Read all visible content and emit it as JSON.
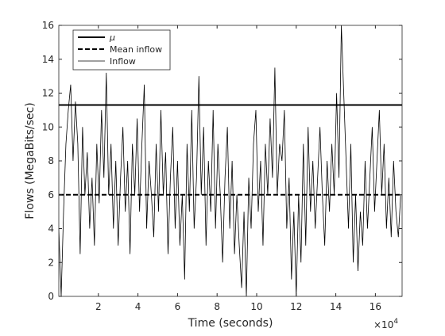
{
  "chart_data": {
    "type": "line",
    "xlabel": "Time (seconds)",
    "ylabel": "Flows (MegaBits/sec)",
    "x_multiplier": {
      "base": "×10",
      "exponent": "4"
    },
    "xlim": [
      0,
      173500
    ],
    "ylim": [
      0,
      16
    ],
    "xticks": [
      {
        "value": 20000,
        "label": "2"
      },
      {
        "value": 40000,
        "label": "4"
      },
      {
        "value": 60000,
        "label": "6"
      },
      {
        "value": 80000,
        "label": "8"
      },
      {
        "value": 100000,
        "label": "10"
      },
      {
        "value": 120000,
        "label": "12"
      },
      {
        "value": 140000,
        "label": "14"
      },
      {
        "value": 160000,
        "label": "16"
      }
    ],
    "yticks": [
      0,
      2,
      4,
      6,
      8,
      10,
      12,
      14,
      16
    ],
    "legend": "upper left",
    "series": [
      {
        "name": "μ",
        "color": "#000000",
        "line_style": "solid",
        "line_width": 2,
        "x": [
          0,
          173500
        ],
        "values": [
          11.3,
          11.3
        ]
      },
      {
        "name": "Mean inflow",
        "color": "#000000",
        "line_style": "dashed",
        "line_width": 2,
        "x": [
          0,
          173500
        ],
        "values": [
          6,
          6
        ]
      },
      {
        "name": "Inflow",
        "color": "#000000",
        "line_style": "solid",
        "line_width": 0.8,
        "x": [
          0,
          1200,
          2400,
          3600,
          4800,
          6000,
          7200,
          8400,
          9600,
          10800,
          12000,
          13200,
          14400,
          15600,
          16800,
          18000,
          19200,
          20400,
          21600,
          22800,
          24000,
          25200,
          26400,
          27600,
          28800,
          30000,
          31200,
          32400,
          33600,
          34800,
          36000,
          37200,
          38400,
          39600,
          40800,
          42000,
          43200,
          44400,
          45600,
          46800,
          48000,
          49200,
          50400,
          51600,
          52800,
          54000,
          55200,
          56400,
          57600,
          58800,
          60000,
          61200,
          62400,
          63600,
          64800,
          66000,
          67200,
          68400,
          69600,
          70800,
          72000,
          73200,
          74400,
          75600,
          76800,
          78000,
          79200,
          80400,
          81600,
          82800,
          84000,
          85200,
          86400,
          87600,
          88800,
          90000,
          91200,
          92400,
          93600,
          94800,
          96000,
          97200,
          98400,
          99600,
          100800,
          102000,
          103200,
          104400,
          105600,
          106800,
          108000,
          109200,
          110400,
          111600,
          112800,
          114000,
          115200,
          116400,
          117600,
          118800,
          120000,
          121200,
          122400,
          123600,
          124800,
          126000,
          127200,
          128400,
          129600,
          130800,
          132000,
          133200,
          134400,
          135600,
          136800,
          138000,
          139200,
          140400,
          141600,
          142800,
          144000,
          145200,
          146400,
          147600,
          148800,
          150000,
          151200,
          152400,
          153600,
          154800,
          156000,
          157200,
          158400,
          159600,
          160800,
          162000,
          163200,
          164400,
          165600,
          166800,
          168000,
          169200,
          170400,
          171600,
          172800
        ],
        "values": [
          4,
          0,
          5,
          9,
          11,
          12.5,
          8,
          11.5,
          9,
          2.5,
          10,
          6,
          8.5,
          4,
          7,
          3,
          9,
          5.5,
          11,
          7,
          13.2,
          6,
          9,
          4,
          8,
          3,
          7,
          10,
          5,
          8,
          2.5,
          9,
          6,
          10.5,
          5,
          9,
          12.5,
          4,
          8,
          6,
          3.5,
          9,
          5,
          11,
          6,
          8.5,
          2.5,
          7,
          10,
          4,
          8,
          3,
          6,
          1,
          9,
          5,
          11,
          4,
          7,
          13,
          6,
          10,
          3,
          8,
          5,
          11,
          4,
          9,
          6,
          2,
          7,
          10,
          4,
          8,
          2.5,
          6,
          3,
          0.5,
          5,
          0,
          7,
          4,
          9,
          11,
          5,
          8,
          3,
          9,
          6,
          10.5,
          7,
          13.5,
          6,
          9,
          8,
          11,
          4,
          7,
          1,
          5,
          0,
          6,
          2,
          9,
          3,
          10,
          5,
          8,
          4,
          7,
          10,
          6,
          3,
          8,
          5,
          9,
          6,
          12,
          7,
          16,
          12,
          8,
          4,
          9,
          2,
          6,
          1.5,
          5,
          3,
          8,
          4,
          7,
          10,
          5,
          8,
          11,
          6,
          9,
          4,
          7,
          3.5,
          8,
          5,
          3.5,
          6
        ]
      }
    ]
  }
}
